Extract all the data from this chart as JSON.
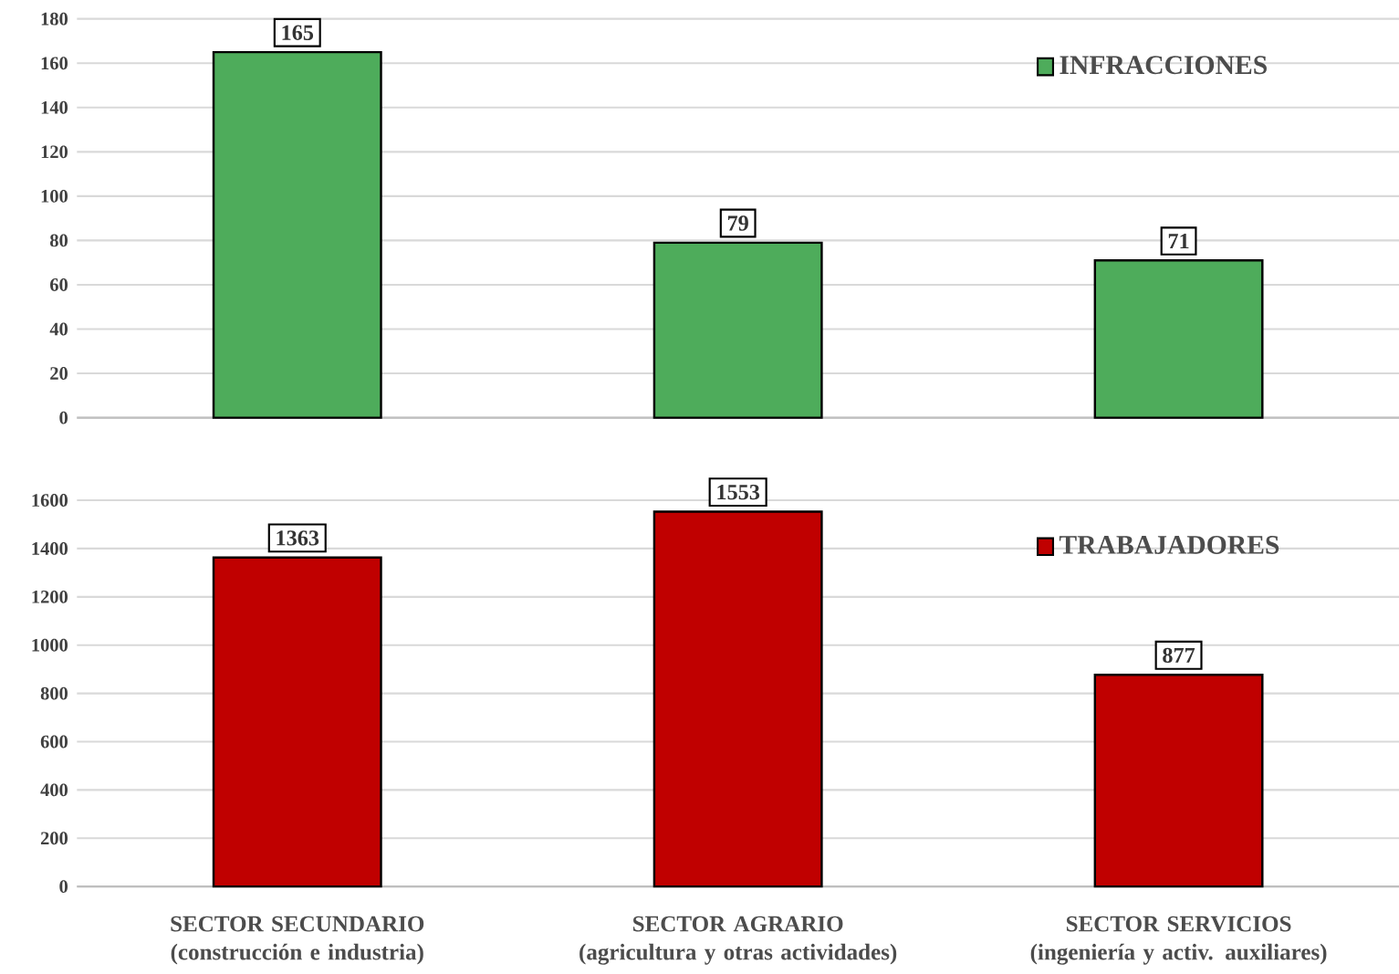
{
  "chart_data": [
    {
      "type": "bar",
      "categories": [
        null,
        null,
        null
      ],
      "series": [
        {
          "name": "INFRACCIONES",
          "color": "#4eac5b",
          "values": [
            165,
            79,
            71
          ]
        }
      ],
      "ylim": [
        0,
        180
      ],
      "yticks": [
        0,
        20,
        40,
        60,
        80,
        100,
        120,
        140,
        160,
        180
      ],
      "grid": "y",
      "legend": "top right",
      "data_labels": true,
      "tick_labels": "y"
    },
    {
      "type": "bar",
      "categories": [
        "SECTOR SECUNDARIO (construcción e industria)",
        "SECTOR AGRARIO (agricultura y otras actividades)",
        "SECTOR SERVICIOS (ingeniería y activ. auxiliares)"
      ],
      "series": [
        {
          "name": "TRABAJADORES",
          "color": "#c00000",
          "values": [
            1363,
            1553,
            877
          ]
        }
      ],
      "ylim": [
        0,
        1600
      ],
      "yticks": [
        0,
        200,
        400,
        600,
        800,
        1000,
        1200,
        1400,
        1600
      ],
      "grid": "y",
      "legend": "top right",
      "data_labels": true
    }
  ]
}
